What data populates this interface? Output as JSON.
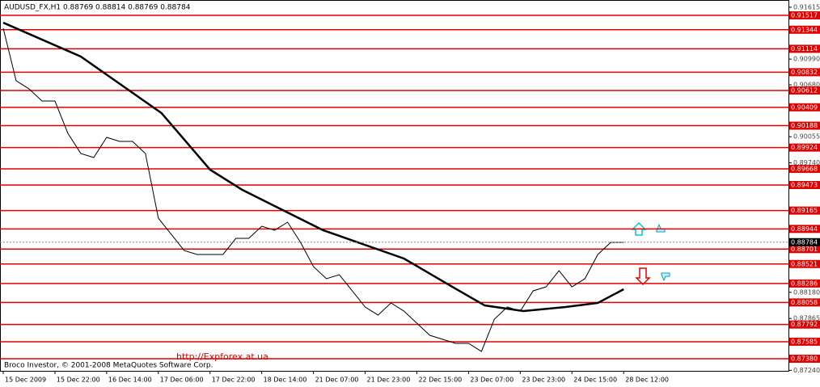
{
  "chart_data": {
    "type": "line",
    "header": "AUDUSD_FX,H1  0.88769 0.88814 0.88769 0.88784",
    "copyright": "Broco Investor, © 2001-2008 MetaQuotes Software Corp.",
    "annotation": "http://Expforex.at.ua",
    "xlim": [
      -1,
      243
    ],
    "xticks": [
      {
        "value": 0,
        "label": "15 Dec 2009"
      },
      {
        "value": 16,
        "label": "15 Dec 22:00"
      },
      {
        "value": 32,
        "label": "16 Dec 14:00"
      },
      {
        "value": 48,
        "label": "17 Dec 06:00"
      },
      {
        "value": 64,
        "label": "17 Dec 22:00"
      },
      {
        "value": 80,
        "label": "18 Dec 14:00"
      },
      {
        "value": 96,
        "label": "21 Dec 07:00"
      },
      {
        "value": 112,
        "label": "21 Dec 23:00"
      },
      {
        "value": 128,
        "label": "22 Dec 15:00"
      },
      {
        "value": 144,
        "label": "23 Dec 07:00"
      },
      {
        "value": 160,
        "label": "23 Dec 23:00"
      },
      {
        "value": 176,
        "label": "24 Dec 15:00"
      },
      {
        "value": 192,
        "label": "28 Dec 12:00"
      }
    ],
    "ylim": [
      0.87234,
      0.91702
    ],
    "yticks": [
      0.91615,
      {
        "value": 0.9099,
        "label": "0.90990"
      },
      {
        "value": 0.9068,
        "label": "0.90680"
      },
      0.90055,
      {
        "value": 0.8974,
        "label": "0.89740"
      },
      {
        "value": 0.8818,
        "label": "0.88180"
      },
      0.87865,
      {
        "value": 0.8724,
        "label": "0.87240"
      }
    ],
    "levels": [
      0.91517,
      0.91344,
      0.91114,
      0.90832,
      0.90612,
      0.90409,
      0.90188,
      0.89924,
      0.89668,
      0.89473,
      0.89165,
      0.88944,
      0.88701,
      0.88521,
      0.88286,
      0.88058,
      0.87792,
      0.87585,
      0.8738
    ],
    "level_labels": [
      "0.91517",
      "0.91344",
      "0.91114",
      "0.90832",
      "0.90612",
      "0.90409",
      "0.90188",
      "0.89924",
      "0.89668",
      "0.89473",
      "0.89165",
      "0.88944",
      "0.88701",
      "0.88521",
      "0.88286",
      "0.88058",
      "0.87792",
      "0.87585",
      "0.87380"
    ],
    "level_color": "#e00000",
    "current": 0.88784,
    "series": [
      {
        "color": "#000000",
        "width": 1,
        "x": [
          0,
          4,
          8,
          12,
          16,
          20,
          24,
          28,
          32,
          36,
          40,
          44,
          48,
          52,
          56,
          60,
          64,
          68,
          72,
          76,
          80,
          84,
          88,
          92,
          96,
          100,
          104,
          108,
          112,
          116,
          120,
          124,
          128,
          132,
          136,
          140,
          144,
          148,
          152,
          156,
          160,
          164,
          168,
          172,
          176,
          180,
          184,
          188,
          192
        ],
        "values": [
          0.91361,
          0.90729,
          0.90631,
          0.90485,
          0.90485,
          0.90096,
          0.89853,
          0.89804,
          0.90047,
          0.89999,
          0.89999,
          0.89853,
          0.89074,
          0.88879,
          0.88684,
          0.88636,
          0.88636,
          0.88636,
          0.8883,
          0.8883,
          0.88976,
          0.88928,
          0.89025,
          0.88782,
          0.8849,
          0.88344,
          0.88392,
          0.88198,
          0.88003,
          0.87906,
          0.88052,
          0.87954,
          0.87808,
          0.87662,
          0.87614,
          0.87565,
          0.87565,
          0.87468,
          0.87857,
          0.88003,
          0.87954,
          0.88198,
          0.88246,
          0.88441,
          0.88246,
          0.88344,
          0.88636,
          0.88782,
          0.88782
        ]
      },
      {
        "color": "#000000",
        "width": 2.5,
        "x": [
          0,
          24,
          49,
          64,
          74,
          99,
          124,
          139,
          149,
          161,
          174,
          184,
          192
        ],
        "values": [
          0.91429,
          0.91021,
          0.90339,
          0.89658,
          0.89414,
          0.88928,
          0.88587,
          0.88246,
          0.88022,
          0.87954,
          0.88003,
          0.88052,
          0.88217
        ]
      }
    ]
  }
}
